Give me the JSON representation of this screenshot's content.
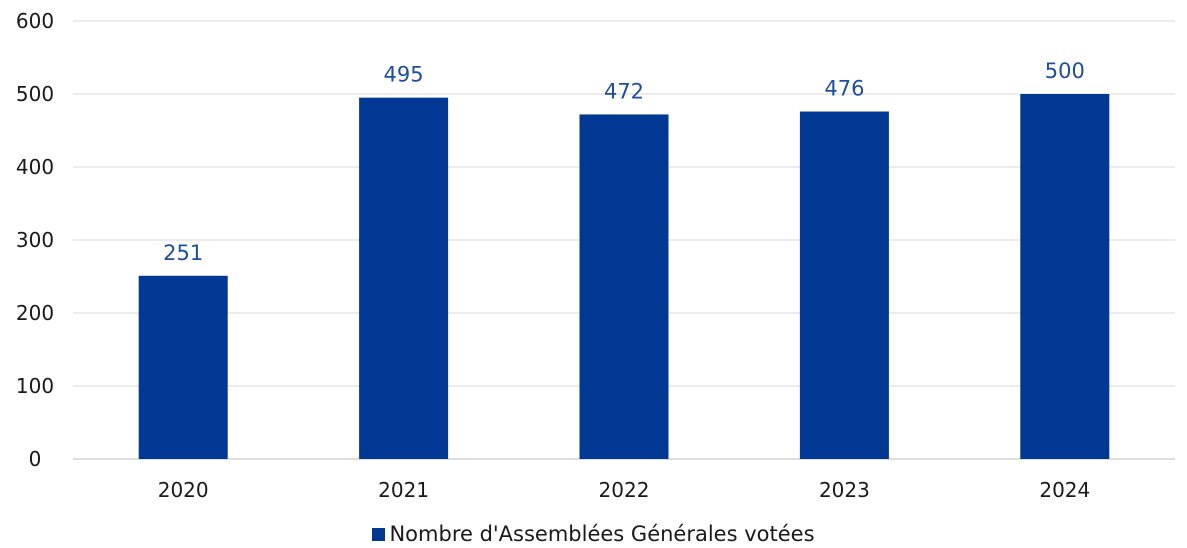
{
  "chart_data": {
    "type": "bar",
    "categories": [
      "2020",
      "2021",
      "2022",
      "2023",
      "2024"
    ],
    "series": [
      {
        "name": "Nombre d'Assemblées Générales votées",
        "values": [
          251,
          495,
          472,
          476,
          500
        ]
      }
    ],
    "ylim": [
      0,
      600
    ],
    "yticks": [
      0,
      100,
      200,
      300,
      400,
      500,
      600
    ],
    "grid": true,
    "legend_position": "bottom",
    "colors": {
      "bar": "#003893",
      "label": "#1F4FA0",
      "grid": "#d9d9d9",
      "axis": "#bfbfbf"
    }
  }
}
